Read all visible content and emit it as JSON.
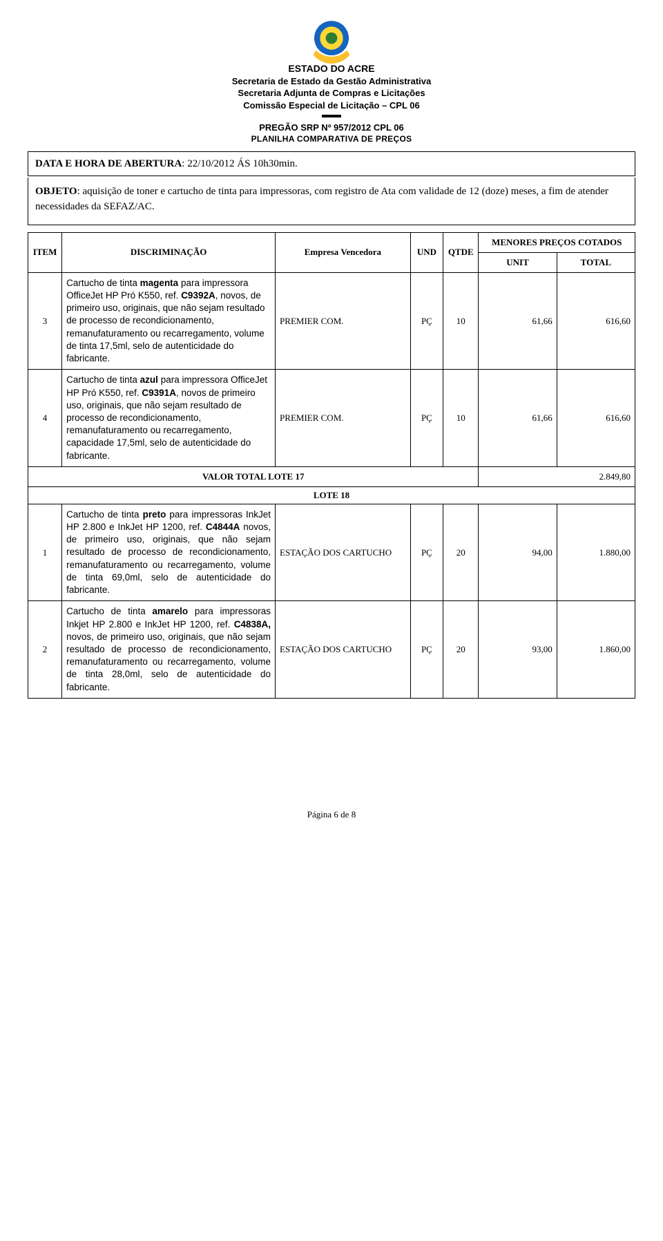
{
  "header": {
    "estado": "ESTADO DO ACRE",
    "secretaria": "Secretaria de Estado da Gestão Administrativa",
    "adjunta": "Secretaria Adjunta de Compras e Licitações",
    "comissao": "Comissão Especial de Licitação – CPL 06",
    "pregao": "PREGÃO SRP Nº 957/2012 CPL 06",
    "planilha": "PLANILHA COMPARATIVA DE PREÇOS"
  },
  "data_abertura": {
    "label": "DATA E HORA DE ABERTURA",
    "value": ": 22/10/2012 ÁS 10h30min."
  },
  "objeto": {
    "label": "OBJETO",
    "text": ":  aquisição de toner e cartucho de tinta para impressoras, com registro de Ata com validade de 12 (doze) meses, a fim de atender necessidades da SEFAZ/AC."
  },
  "columns": {
    "item": "ITEM",
    "disc": "DISCRIMINAÇÃO",
    "empresa": "Empresa Vencedora",
    "und": "UND",
    "qtde": "QTDE",
    "menores": "MENORES PREÇOS COTADOS",
    "unit": "UNIT",
    "total": "TOTAL"
  },
  "rows": [
    {
      "item": "3",
      "disc_pre": "Cartucho de tinta ",
      "disc_bold1": "magenta",
      "disc_mid1": " para impressora OfficeJet HP Pró K550, ref. ",
      "disc_bold2": "C9392A",
      "disc_post": ", novos, de primeiro uso, originais, que não sejam resultado de processo de recondicionamento, remanufaturamento ou recarregamento, volume de tinta 17,5ml, selo de autenticidade do fabricante.",
      "empresa": "PREMIER COM.",
      "und": "PÇ",
      "qtde": "10",
      "unit": "61,66",
      "total": "616,60",
      "justify": false
    },
    {
      "item": "4",
      "disc_pre": "Cartucho de tinta ",
      "disc_bold1": "azul",
      "disc_mid1": " para impressora OfficeJet HP Pró K550, ref. ",
      "disc_bold2": "C9391A",
      "disc_post": ", novos de primeiro uso, originais, que não sejam resultado de processo de recondicionamento, remanufaturamento ou recarregamento, capacidade 17,5ml, selo de autenticidade do fabricante.",
      "empresa": "PREMIER COM.",
      "und": "PÇ",
      "qtde": "10",
      "unit": "61,66",
      "total": "616,60",
      "justify": false
    }
  ],
  "valor_total_17": {
    "label": "VALOR TOTAL LOTE 17",
    "value": "2.849,80"
  },
  "lote18_label": "LOTE 18",
  "rows_lote18": [
    {
      "item": "1",
      "disc_pre": "Cartucho de tinta ",
      "disc_bold1": "preto",
      "disc_mid1": " para impressoras InkJet HP 2.800 e InkJet HP 1200, ref. ",
      "disc_bold2": "C4844A",
      "disc_post": " novos, de primeiro uso, originais, que não sejam resultado de processo de recondicionamento, remanufaturamento ou recarregamento, volume de tinta 69,0ml, selo de autenticidade do fabricante.",
      "empresa": "ESTAÇÃO DOS CARTUCHO",
      "und": "PÇ",
      "qtde": "20",
      "unit": "94,00",
      "total": "1.880,00",
      "justify": true
    },
    {
      "item": "2",
      "disc_pre": "Cartucho de tinta ",
      "disc_bold1": "amarelo",
      "disc_mid1": " para impressoras Inkjet HP 2.800 e InkJet HP 1200, ref. ",
      "disc_bold2": "C4838A,",
      "disc_post": " novos, de primeiro uso, originais, que não sejam resultado de processo de recondicionamento, remanufaturamento ou recarregamento, volume de tinta 28,0ml, selo de autenticidade do fabricante.",
      "empresa": "ESTAÇÃO DOS CARTUCHO",
      "und": "PÇ",
      "qtde": "20",
      "unit": "93,00",
      "total": "1.860,00",
      "justify": true
    }
  ],
  "footer": "Página 6 de 8"
}
